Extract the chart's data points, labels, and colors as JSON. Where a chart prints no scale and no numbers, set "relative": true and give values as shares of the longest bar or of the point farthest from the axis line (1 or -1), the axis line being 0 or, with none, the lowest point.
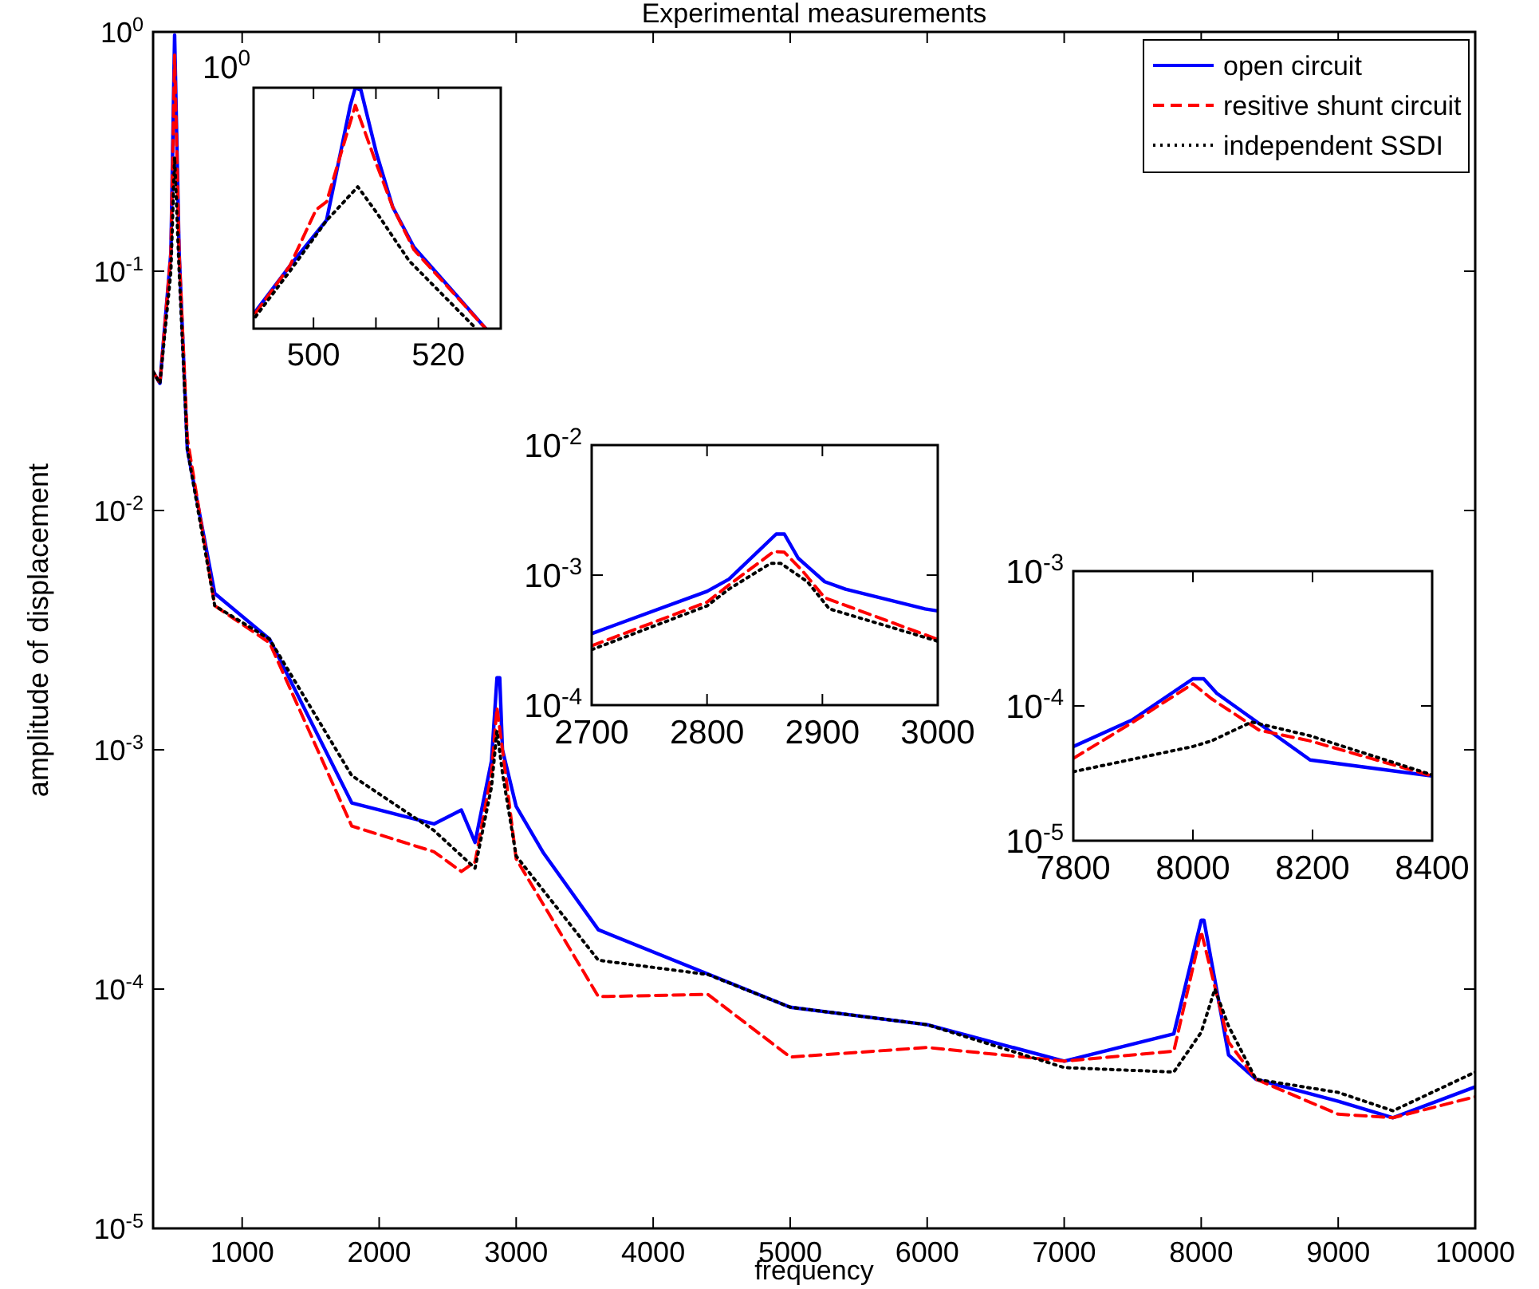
{
  "chart_data": [
    {
      "type": "line",
      "title": "Experimental measurements",
      "xlabel": "frequency",
      "ylabel": "amplitude of displacement",
      "log": "y",
      "xlim": [
        350,
        10000
      ],
      "ylim": [
        1e-05,
        1
      ],
      "xticks": [
        1000,
        2000,
        3000,
        4000,
        5000,
        6000,
        7000,
        8000,
        9000,
        10000
      ],
      "yticks": [
        {
          "value": 1e-05,
          "label": "10$^{-5}$"
        },
        {
          "value": 0.0001,
          "label": "10$^{-4}$"
        },
        {
          "value": 0.001,
          "label": "10$^{-3}$"
        },
        {
          "value": 0.01,
          "label": "10$^{-2}$"
        },
        {
          "value": 0.1,
          "label": "10$^{-1}$"
        },
        {
          "value": 1,
          "label": "10$^{0}$"
        }
      ],
      "grid": false,
      "legend": "top right",
      "marker": "none",
      "series": [
        {
          "name": "open circuit",
          "color": "#0000ff",
          "line_style": "solid",
          "x": [
            350,
            400,
            480,
            507,
            540,
            600,
            800,
            1200,
            1800,
            2400,
            2600,
            2700,
            2820,
            2860,
            2880,
            2900,
            3000,
            3200,
            3600,
            5000,
            6000,
            7000,
            7800,
            8000,
            8020,
            8200,
            8400,
            9000,
            9400,
            10000
          ],
          "values": [
            0.038,
            0.034,
            0.12,
            0.97,
            0.12,
            0.018,
            0.0045,
            0.0029,
            0.0006,
            0.00049,
            0.00056,
            0.00041,
            0.0009,
            0.002,
            0.002,
            0.001,
            0.00058,
            0.00037,
            0.000177,
            8.4e-05,
            7.1e-05,
            5e-05,
            6.5e-05,
            0.000194,
            0.000194,
            5.3e-05,
            4.2e-05,
            3.4e-05,
            2.9e-05,
            3.9e-05
          ]
        },
        {
          "name": "resitive shunt circuit",
          "color": "#ff0000",
          "line_style": "dashed",
          "x": [
            350,
            400,
            480,
            507,
            540,
            600,
            800,
            1200,
            1800,
            2400,
            2600,
            2700,
            2820,
            2860,
            2900,
            3000,
            3600,
            4400,
            5000,
            6000,
            7000,
            7800,
            8000,
            8200,
            8400,
            9000,
            9400,
            10000
          ],
          "values": [
            0.038,
            0.034,
            0.12,
            0.8,
            0.12,
            0.02,
            0.004,
            0.0028,
            0.00048,
            0.000375,
            0.00031,
            0.00034,
            0.0008,
            0.0015,
            0.001,
            0.00035,
            9.3e-05,
            9.5e-05,
            5.2e-05,
            5.7e-05,
            5e-05,
            5.5e-05,
            0.000174,
            6e-05,
            4.2e-05,
            3e-05,
            2.9e-05,
            3.55e-05
          ]
        },
        {
          "name": "independent SSDI",
          "color": "#000000",
          "line_style": "dotted",
          "x": [
            350,
            400,
            480,
            507,
            540,
            600,
            800,
            1200,
            1800,
            2400,
            2700,
            2820,
            2860,
            2900,
            3000,
            3600,
            4400,
            5000,
            6000,
            7000,
            7800,
            8000,
            8100,
            8200,
            8400,
            9000,
            9400,
            10000
          ],
          "values": [
            0.038,
            0.034,
            0.1,
            0.3,
            0.1,
            0.018,
            0.004,
            0.0029,
            0.00078,
            0.00046,
            0.00032,
            0.0007,
            0.0012,
            0.0008,
            0.00036,
            0.000132,
            0.000115,
            8.4e-05,
            7.1e-05,
            4.7e-05,
            4.5e-05,
            6.6e-05,
            0.0001,
            7e-05,
            4.2e-05,
            3.7e-05,
            3.1e-05,
            4.5e-05
          ]
        }
      ]
    },
    {
      "type": "line",
      "relative": true,
      "xlim": [
        490.4,
        530
      ],
      "xticks": [
        500,
        {
          "value": 510,
          "label": null
        },
        520
      ],
      "annotations": [
        "10$^{0}$"
      ],
      "marker": "none",
      "series": [
        {
          "color": "#0000ff",
          "line_style": "solid",
          "x": [
            490.7,
            496.2,
            502.1,
            505.9,
            506.7,
            507.6,
            510.1,
            512.7,
            516.1,
            527.6
          ],
          "values": [
            0.071,
            0.26,
            0.451,
            0.927,
            1,
            0.99,
            0.727,
            0.504,
            0.338,
            0
          ]
        },
        {
          "color": "#ff0000",
          "line_style": "dashed",
          "x": [
            490.7,
            496.2,
            500.4,
            502.1,
            506.7,
            510.1,
            512.7,
            516.1,
            527.6
          ],
          "values": [
            0.064,
            0.26,
            0.493,
            0.527,
            0.927,
            0.682,
            0.504,
            0.327,
            0
          ]
        },
        {
          "color": "#000000",
          "line_style": "dotted",
          "x": [
            490.7,
            496.2,
            502.1,
            507.1,
            510.1,
            515.3,
            525.9
          ],
          "values": [
            0.049,
            0.238,
            0.449,
            0.589,
            0.482,
            0.282,
            0.004
          ]
        }
      ]
    },
    {
      "type": "line",
      "log": "y",
      "xlim": [
        2700,
        3000
      ],
      "ylim": [
        0.0001,
        0.01
      ],
      "xticks": [
        2700,
        2800,
        2900,
        3000
      ],
      "yticks": [
        {
          "value": 0.0001,
          "label": "10$^{-4}$"
        },
        {
          "value": 0.001,
          "label": "10$^{-3}$"
        },
        {
          "value": 0.01,
          "label": "10$^{-2}$"
        }
      ],
      "marker": "none",
      "series": [
        {
          "color": "#0000ff",
          "line_style": "solid",
          "x": [
            2700,
            2800,
            2819,
            2860,
            2867,
            2879,
            2902,
            2920,
            2989,
            3000
          ],
          "values": [
            0.000355,
            0.00075,
            0.00093,
            0.00207,
            0.00207,
            0.00135,
            0.00089,
            0.00078,
            0.00055,
            0.00053
          ]
        },
        {
          "color": "#ff0000",
          "line_style": "dashed",
          "x": [
            2700,
            2800,
            2819,
            2858,
            2867,
            2883,
            2902,
            3000
          ],
          "values": [
            0.000286,
            0.00062,
            0.00084,
            0.00152,
            0.0015,
            0.00107,
            0.00067,
            0.00032
          ]
        },
        {
          "color": "#000000",
          "line_style": "dotted",
          "x": [
            2700,
            2800,
            2819,
            2855,
            2864,
            2887,
            2906,
            3000
          ],
          "values": [
            0.000267,
            0.00058,
            0.00078,
            0.00123,
            0.00123,
            0.00089,
            0.00055,
            0.00031
          ]
        }
      ]
    },
    {
      "type": "line",
      "log": "y",
      "xlim": [
        7800,
        8400
      ],
      "ylim": [
        1e-05,
        0.001
      ],
      "xticks": [
        7800,
        8000,
        8200,
        8400
      ],
      "yticks": [
        {
          "value": 1e-05,
          "label": "10$^{-5}$"
        },
        {
          "value": 0.0001,
          "label": "10$^{-4}$"
        },
        {
          "value": 0.001,
          "label": "10$^{-3}$"
        }
      ],
      "marker": "none",
      "series": [
        {
          "color": "#0000ff",
          "line_style": "solid",
          "x": [
            7800,
            7898,
            8000,
            8018,
            8040,
            8196,
            8400
          ],
          "values": [
            5e-05,
            7.85e-05,
            0.000159,
            0.000159,
            0.000124,
            3.97e-05,
            3.02e-05
          ]
        },
        {
          "color": "#ff0000",
          "line_style": "dashed",
          "x": [
            7800,
            7898,
            8000,
            8031,
            8111,
            8196,
            8400
          ],
          "values": [
            4.08e-05,
            7.5e-05,
            0.000146,
            0.000113,
            6.6e-05,
            5.5e-05,
            3.02e-05
          ]
        },
        {
          "color": "#000000",
          "line_style": "dotted",
          "x": [
            7800,
            8000,
            8031,
            8098,
            8196,
            8400
          ],
          "values": [
            3.25e-05,
            5e-05,
            5.5e-05,
            7.6e-05,
            6e-05,
            3.08e-05
          ]
        }
      ]
    }
  ]
}
